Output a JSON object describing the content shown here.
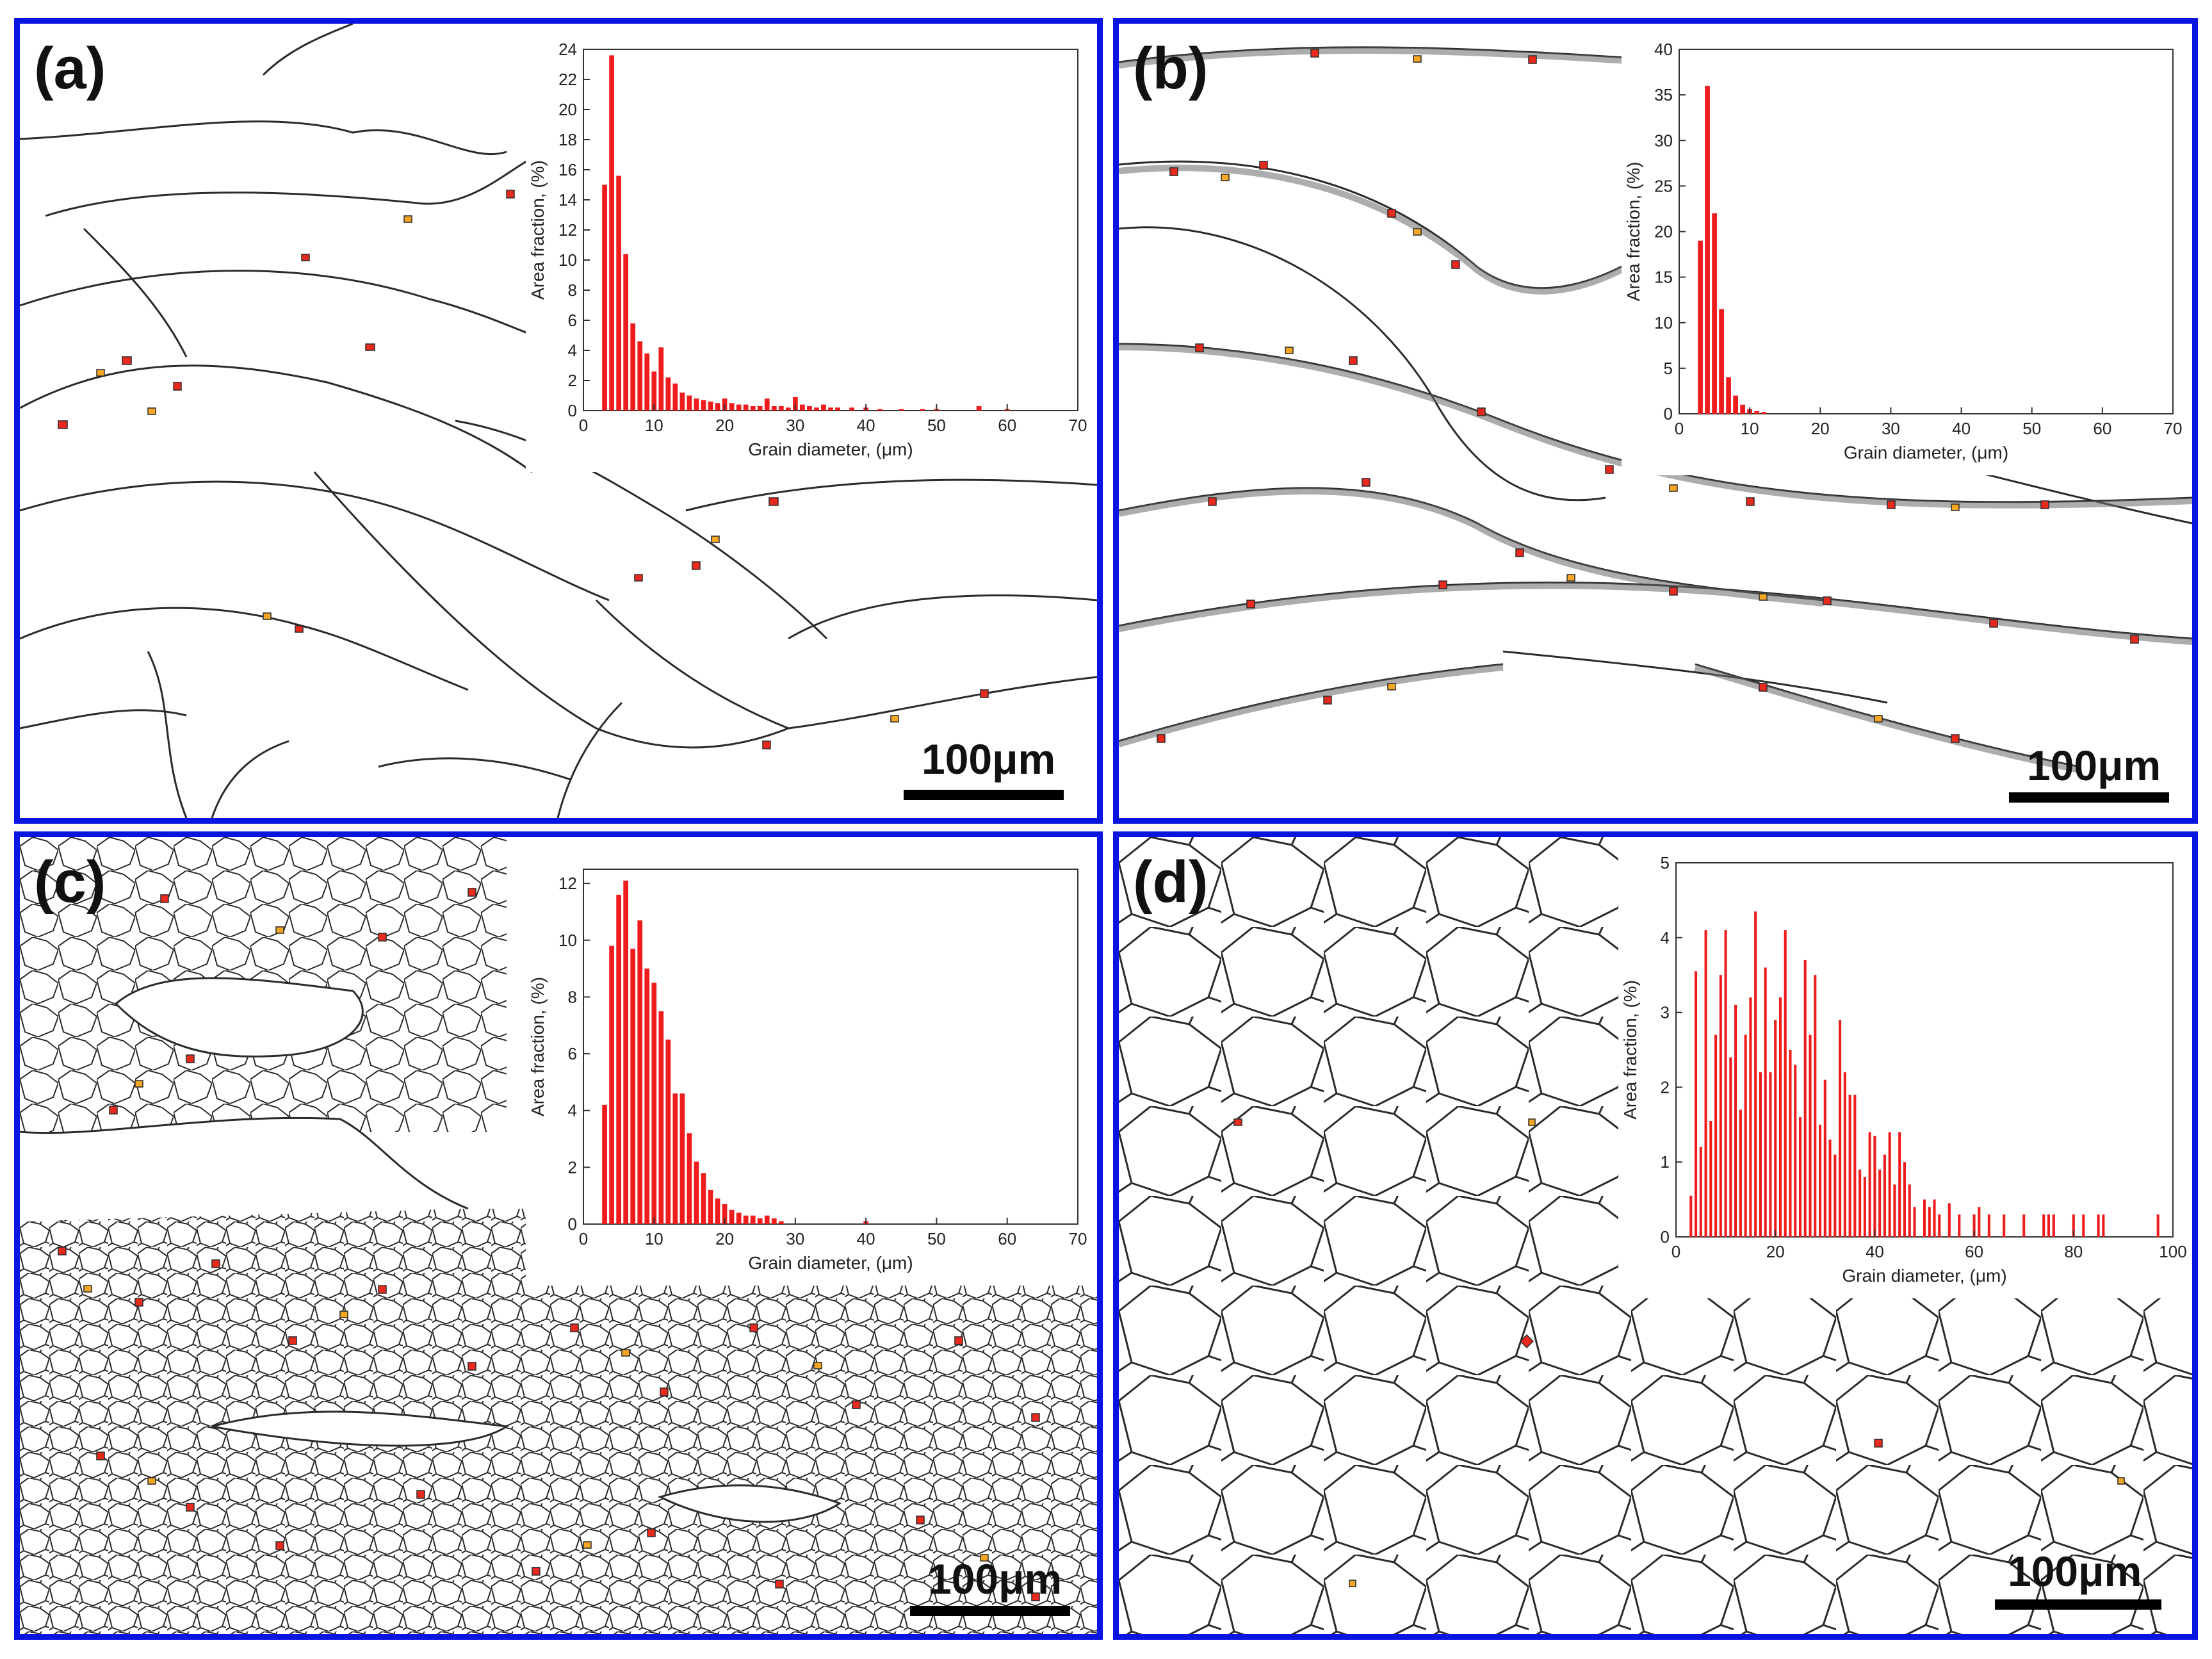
{
  "colors": {
    "frame": "#0a14e0",
    "bar": "#ee1c1c",
    "grain_boundary": "#2a2a2a",
    "grain_red": "#e8291e",
    "grain_orange": "#f5a623",
    "grain_yellow": "#ffd24a"
  },
  "panels": [
    {
      "id": "a",
      "label": "(a)",
      "scale_label": "100μm"
    },
    {
      "id": "b",
      "label": "(b)",
      "scale_label": "100μm"
    },
    {
      "id": "c",
      "label": "(c)",
      "scale_label": "100μm"
    },
    {
      "id": "d",
      "label": "(d)",
      "scale_label": "100μm"
    }
  ],
  "chart_data": [
    {
      "type": "bar",
      "panel": "a",
      "xlabel": "Grain diameter, (μm)",
      "ylabel": "Area fraction, (%)",
      "xlim": [
        0,
        70
      ],
      "ylim": [
        0,
        24
      ],
      "xticks": [
        0,
        10,
        20,
        30,
        40,
        50,
        60,
        70
      ],
      "yticks": [
        0,
        2,
        4,
        6,
        8,
        10,
        12,
        14,
        16,
        18,
        20,
        22,
        24
      ],
      "bin_width": 1,
      "x": [
        3,
        4,
        5,
        6,
        7,
        8,
        9,
        10,
        11,
        12,
        13,
        14,
        15,
        16,
        17,
        18,
        19,
        20,
        21,
        22,
        23,
        24,
        25,
        26,
        27,
        28,
        29,
        30,
        31,
        32,
        33,
        34,
        35,
        36,
        38,
        40,
        42,
        45,
        48,
        50,
        56,
        60
      ],
      "values": [
        15,
        23.6,
        15.6,
        10.4,
        5.8,
        4.6,
        3.8,
        2.6,
        4.2,
        2.2,
        1.8,
        1.2,
        1,
        0.8,
        0.7,
        0.6,
        0.5,
        0.8,
        0.5,
        0.4,
        0.4,
        0.3,
        0.3,
        0.8,
        0.3,
        0.3,
        0.2,
        0.9,
        0.4,
        0.3,
        0.2,
        0.4,
        0.2,
        0.2,
        0.2,
        0.2,
        0.1,
        0.1,
        0.1,
        0.1,
        0.3,
        0.1
      ]
    },
    {
      "type": "bar",
      "panel": "b",
      "xlabel": "Grain diameter, (μm)",
      "ylabel": "Area fraction, (%)",
      "xlim": [
        0,
        70
      ],
      "ylim": [
        0,
        40
      ],
      "xticks": [
        0,
        10,
        20,
        30,
        40,
        50,
        60,
        70
      ],
      "yticks": [
        0,
        5,
        10,
        15,
        20,
        25,
        30,
        35,
        40
      ],
      "bin_width": 1,
      "x": [
        3,
        4,
        5,
        6,
        7,
        8,
        9,
        10,
        11,
        12
      ],
      "values": [
        19,
        36,
        22,
        11.5,
        4,
        2,
        1,
        0.5,
        0.3,
        0.2
      ]
    },
    {
      "type": "bar",
      "panel": "c",
      "xlabel": "Grain diameter, (μm)",
      "ylabel": "Area fraction, (%)",
      "xlim": [
        0,
        70
      ],
      "ylim": [
        0,
        12.5
      ],
      "xticks": [
        0,
        10,
        20,
        30,
        40,
        50,
        60,
        70
      ],
      "yticks": [
        0,
        2,
        4,
        6,
        8,
        10,
        12
      ],
      "bin_width": 1,
      "x": [
        3,
        4,
        5,
        6,
        7,
        8,
        9,
        10,
        11,
        12,
        13,
        14,
        15,
        16,
        17,
        18,
        19,
        20,
        21,
        22,
        23,
        24,
        25,
        26,
        27,
        28,
        40
      ],
      "values": [
        4.2,
        9.8,
        11.6,
        12.1,
        9.7,
        10.7,
        9,
        8.5,
        7.5,
        6.5,
        4.6,
        4.6,
        3.2,
        2.2,
        1.8,
        1.2,
        0.9,
        0.7,
        0.5,
        0.4,
        0.3,
        0.3,
        0.2,
        0.3,
        0.2,
        0.1,
        0.1
      ]
    },
    {
      "type": "bar",
      "panel": "d",
      "xlabel": "Grain diameter, (μm)",
      "ylabel": "Area fraction, (%)",
      "xlim": [
        0,
        100
      ],
      "ylim": [
        0,
        5
      ],
      "xticks": [
        0,
        20,
        40,
        60,
        80,
        100
      ],
      "yticks": [
        0,
        1,
        2,
        3,
        4,
        5
      ],
      "bin_width": 0.75,
      "x": [
        3,
        4,
        5,
        6,
        7,
        8,
        9,
        10,
        11,
        12,
        13,
        14,
        15,
        16,
        17,
        18,
        19,
        20,
        21,
        22,
        23,
        24,
        25,
        26,
        27,
        28,
        29,
        30,
        31,
        32,
        33,
        34,
        35,
        36,
        37,
        38,
        39,
        40,
        41,
        42,
        43,
        44,
        45,
        46,
        47,
        48,
        50,
        51,
        52,
        53,
        55,
        57,
        60,
        61,
        63,
        66,
        70,
        74,
        75,
        76,
        80,
        82,
        85,
        86,
        97
      ],
      "values": [
        0.55,
        3.55,
        1.2,
        4.1,
        1.55,
        2.7,
        3.5,
        4.1,
        2.4,
        3.1,
        1.7,
        2.7,
        3.2,
        4.35,
        2.2,
        3.6,
        2.2,
        2.9,
        3.2,
        4.1,
        2.5,
        2.3,
        1.6,
        3.7,
        2.7,
        3.5,
        1.5,
        2.1,
        1.3,
        1.1,
        2.9,
        2.2,
        1.9,
        1.9,
        0.9,
        0.8,
        1.4,
        1.35,
        0.9,
        1.1,
        1.4,
        0.7,
        1.4,
        1.0,
        0.7,
        0.4,
        0.5,
        0.4,
        0.5,
        0.3,
        0.45,
        0.3,
        0.3,
        0.4,
        0.3,
        0.3,
        0.3,
        0.3,
        0.3,
        0.3,
        0.3,
        0.3,
        0.3,
        0.3,
        0.3
      ]
    }
  ]
}
